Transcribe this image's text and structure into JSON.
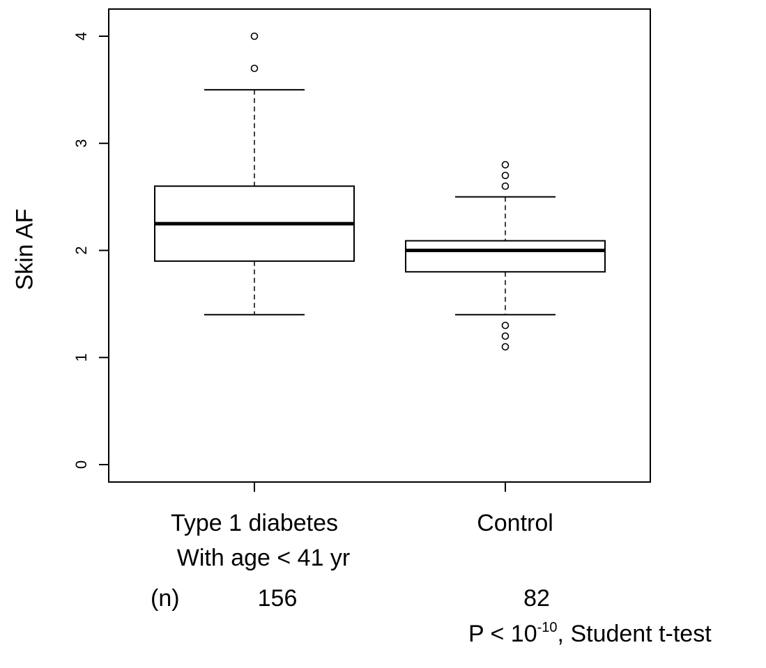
{
  "chart_data": {
    "type": "boxplot",
    "ylabel": "Skin AF",
    "ylim": [
      0,
      4
    ],
    "yticks": [
      "0",
      "1",
      "2",
      "3",
      "4"
    ],
    "series": [
      {
        "category": [
          "Type 1 diabetes",
          "With age < 41 yr"
        ],
        "n": "156",
        "whisker_low": 1.4,
        "q1": 1.9,
        "median": 2.25,
        "q3": 2.6,
        "whisker_high": 3.5,
        "outliers": [
          3.7,
          4.0
        ]
      },
      {
        "category": [
          "Control"
        ],
        "n": "82",
        "whisker_low": 1.4,
        "q1": 1.8,
        "median": 2.0,
        "q3": 2.09,
        "whisker_high": 2.5,
        "outliers": [
          1.1,
          1.2,
          1.3,
          2.6,
          2.7,
          2.8
        ]
      }
    ],
    "n_label": "(n)",
    "annotation": {
      "prefix": "P < 10",
      "exponent": "-10",
      "suffix": ", Student t-test"
    }
  }
}
